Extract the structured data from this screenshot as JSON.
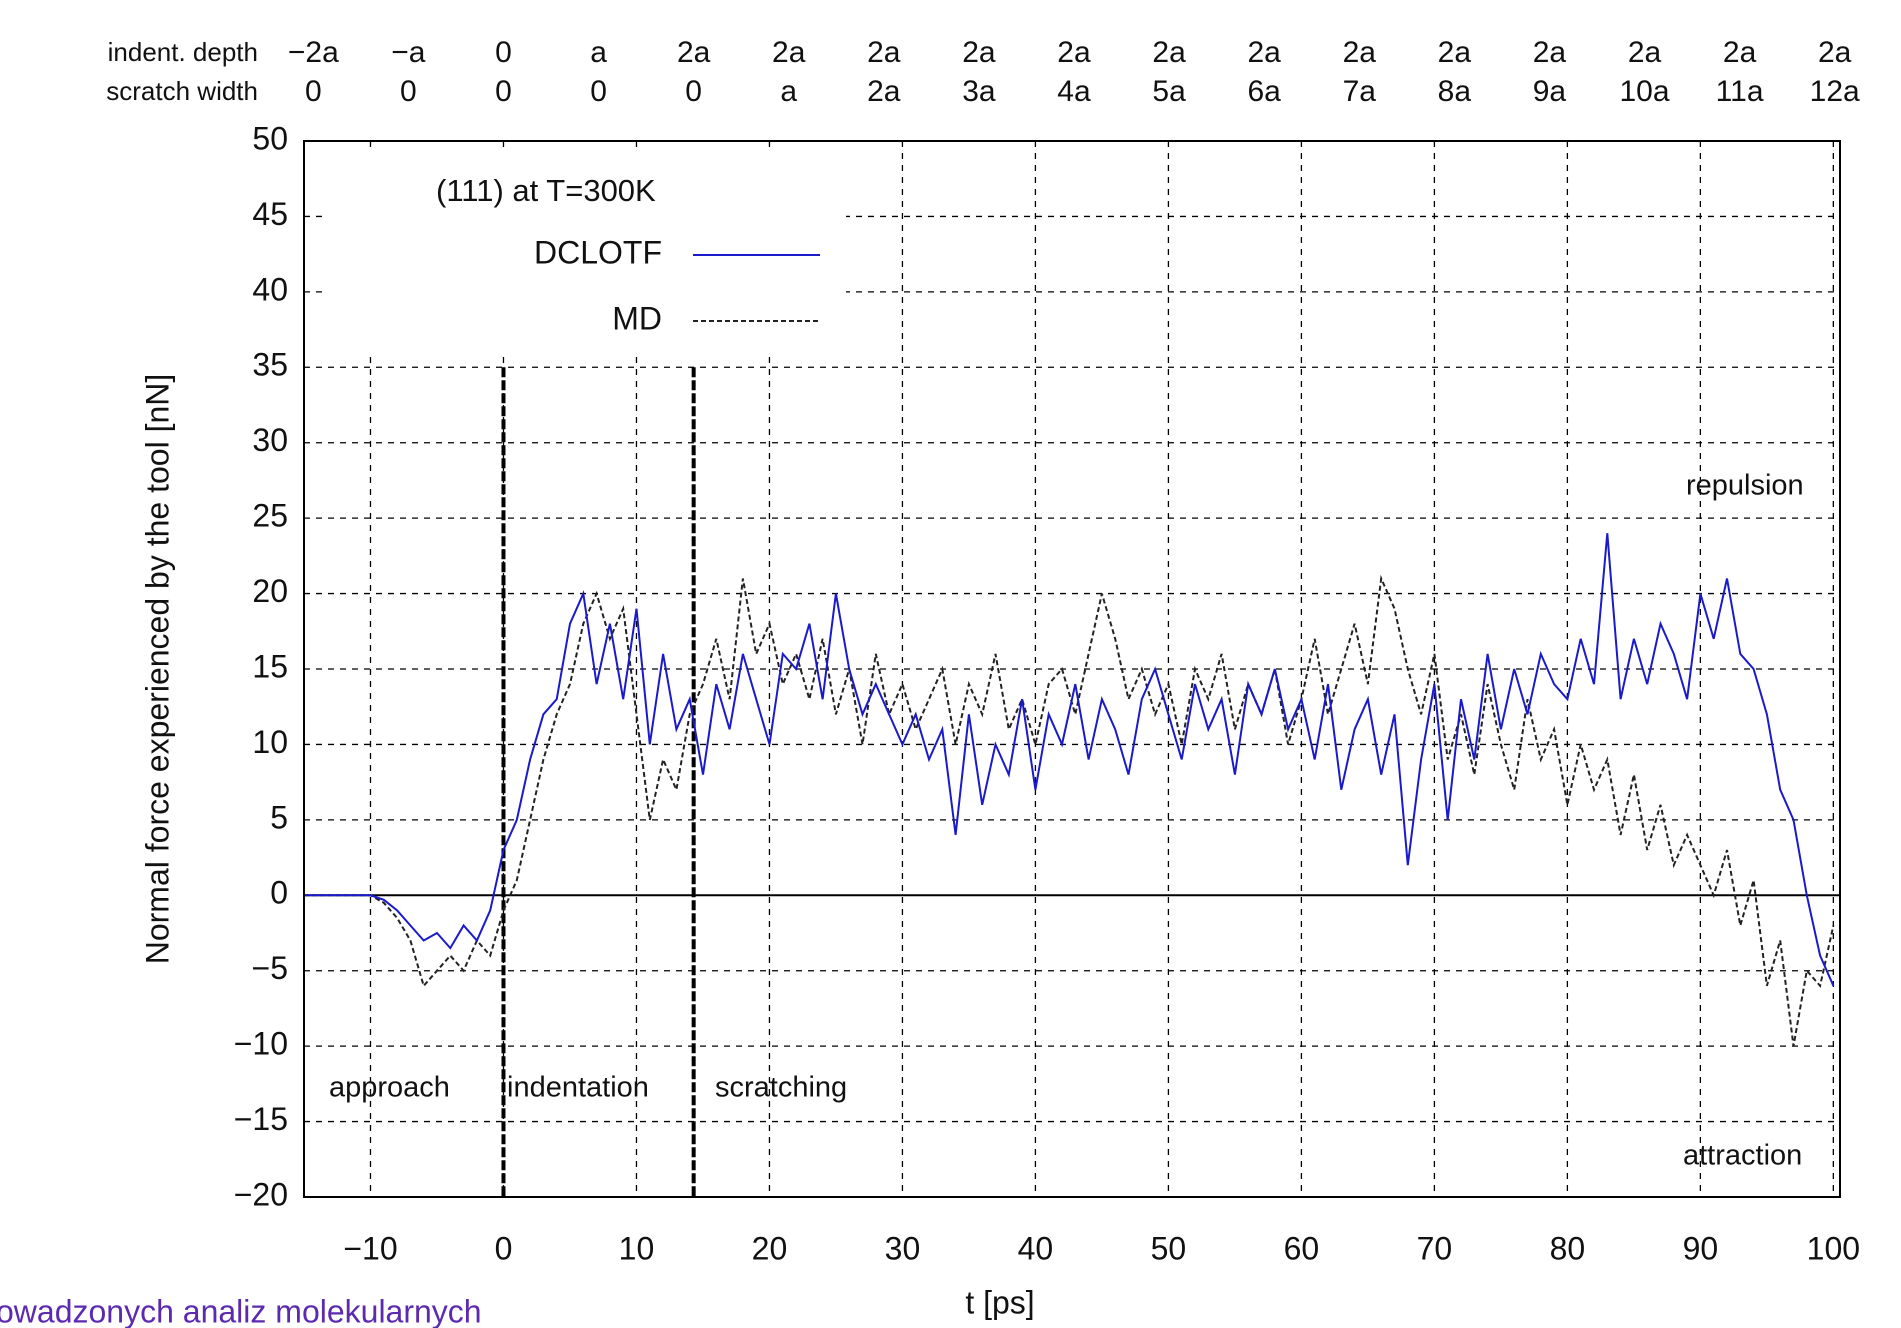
{
  "chart_data": {
    "type": "line",
    "title": "(111) at T=300K",
    "xlabel": "t [ps]",
    "ylabel": "Normal force experienced by the tool [nN]",
    "xlim": [
      -15,
      100.5
    ],
    "ylim": [
      -20,
      50
    ],
    "xticks": [
      {
        "value": -10,
        "label": "−10"
      },
      0,
      10,
      20,
      30,
      40,
      50,
      60,
      70,
      80,
      90,
      100
    ],
    "yticks": [
      {
        "value": -20,
        "label": "−20"
      },
      {
        "value": -15,
        "label": "−15"
      },
      {
        "value": -10,
        "label": "−10"
      },
      {
        "value": -5,
        "label": "−5"
      },
      0,
      5,
      10,
      15,
      20,
      25,
      30,
      35,
      40,
      45,
      50
    ],
    "grid": true,
    "zero_line": true,
    "vertical_lines": [
      {
        "x": 0,
        "y_top": 35
      },
      {
        "x": 14.3,
        "y_top": 35
      }
    ],
    "annotations": [
      "repulsion",
      "attraction",
      "approach",
      "indentation",
      "scratching"
    ],
    "top_axis": {
      "rows": [
        "indent. depth",
        "scratch width"
      ],
      "x": [
        -14.3,
        -7.15,
        0,
        7.15,
        14.3,
        21.45,
        28.6,
        35.75,
        42.9,
        50.05,
        57.2,
        64.35,
        71.5,
        78.65,
        85.8,
        92.95,
        100.1
      ],
      "indent_depth": [
        "−2a",
        "−a",
        "0",
        "a",
        "2a",
        "2a",
        "2a",
        "2a",
        "2a",
        "2a",
        "2a",
        "2a",
        "2a",
        "2a",
        "2a",
        "2a",
        "2a"
      ],
      "scratch_width": [
        "0",
        "0",
        "0",
        "0",
        "0",
        "a",
        "2a",
        "3a",
        "4a",
        "5a",
        "6a",
        "7a",
        "8a",
        "9a",
        "10a",
        "11a",
        "12a"
      ]
    },
    "x": [
      -15,
      -14,
      -13,
      -12,
      -11,
      -10,
      -9,
      -8,
      -7,
      -6,
      -5,
      -4,
      -3,
      -2,
      -1,
      0,
      1,
      2,
      3,
      4,
      5,
      6,
      7,
      8,
      9,
      10,
      11,
      12,
      13,
      14,
      15,
      16,
      17,
      18,
      19,
      20,
      21,
      22,
      23,
      24,
      25,
      26,
      27,
      28,
      29,
      30,
      31,
      32,
      33,
      34,
      35,
      36,
      37,
      38,
      39,
      40,
      41,
      42,
      43,
      44,
      45,
      46,
      47,
      48,
      49,
      50,
      51,
      52,
      53,
      54,
      55,
      56,
      57,
      58,
      59,
      60,
      61,
      62,
      63,
      64,
      65,
      66,
      67,
      68,
      69,
      70,
      71,
      72,
      73,
      74,
      75,
      76,
      77,
      78,
      79,
      80,
      81,
      82,
      83,
      84,
      85,
      86,
      87,
      88,
      89,
      90,
      91,
      92,
      93,
      94,
      95,
      96,
      97,
      98,
      99,
      100
    ],
    "series": [
      {
        "name": "DCLOTF",
        "color": "#1a1acc",
        "dash": false,
        "values": [
          0,
          0,
          0,
          0,
          0,
          0,
          -0.3,
          -1,
          -2,
          -3,
          -2.5,
          -3.5,
          -2,
          -3,
          -1,
          3,
          5,
          9,
          12,
          13,
          18,
          20,
          14,
          18,
          13,
          19,
          10,
          16,
          11,
          13,
          8,
          14,
          11,
          16,
          13,
          10,
          16,
          15,
          18,
          13,
          20,
          15,
          12,
          14,
          12,
          10,
          12,
          9,
          11,
          4,
          12,
          6,
          10,
          8,
          13,
          7,
          12,
          10,
          14,
          9,
          13,
          11,
          8,
          13,
          15,
          12,
          9,
          14,
          11,
          13,
          8,
          14,
          12,
          15,
          11,
          13,
          9,
          14,
          7,
          11,
          13,
          8,
          12,
          2,
          9,
          14,
          5,
          13,
          9,
          16,
          11,
          15,
          12,
          16,
          14,
          13,
          17,
          14,
          24,
          13,
          17,
          14,
          18,
          16,
          13,
          20,
          17,
          21,
          16,
          15,
          12,
          7,
          5,
          0,
          -4,
          -6
        ]
      },
      {
        "name": "MD",
        "color": "#222222",
        "dash": true,
        "values": [
          0,
          0,
          0,
          0,
          0,
          0,
          -0.5,
          -1.5,
          -3,
          -6,
          -5,
          -4,
          -5,
          -3,
          -4,
          -1,
          1,
          5,
          9,
          12,
          14,
          18,
          20,
          17,
          19,
          12,
          5,
          9,
          7,
          12,
          14,
          17,
          13,
          21,
          16,
          18,
          14,
          16,
          13,
          17,
          12,
          15,
          10,
          16,
          12,
          14,
          11,
          13,
          15,
          10,
          14,
          12,
          16,
          11,
          13,
          10,
          14,
          15,
          12,
          16,
          20,
          17,
          13,
          15,
          12,
          14,
          10,
          15,
          13,
          16,
          11,
          14,
          12,
          15,
          10,
          13,
          17,
          12,
          15,
          18,
          14,
          21,
          19,
          15,
          12,
          16,
          9,
          12,
          8,
          14,
          10,
          7,
          13,
          9,
          11,
          6,
          10,
          7,
          9,
          4,
          8,
          3,
          6,
          2,
          4,
          2,
          0,
          3,
          -2,
          1,
          -6,
          -3,
          -10,
          -5,
          -6,
          -2
        ]
      }
    ],
    "footer": "owadzonych analiz molekularnych"
  }
}
